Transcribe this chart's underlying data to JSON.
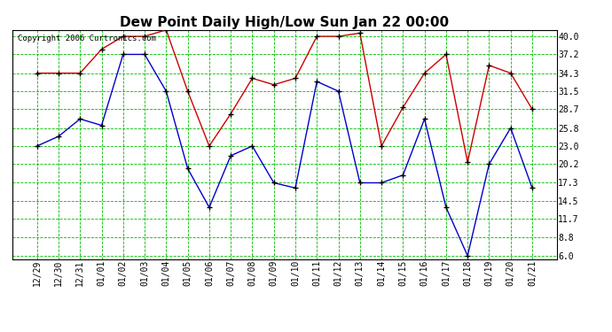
{
  "title": "Dew Point Daily High/Low Sun Jan 22 00:00",
  "copyright": "Copyright 2006 Curtronics.com",
  "x_labels": [
    "12/29",
    "12/30",
    "12/31",
    "01/01",
    "01/02",
    "01/03",
    "01/04",
    "01/05",
    "01/06",
    "01/07",
    "01/08",
    "01/09",
    "01/10",
    "01/11",
    "01/12",
    "01/13",
    "01/14",
    "01/15",
    "01/16",
    "01/17",
    "01/18",
    "01/19",
    "01/20",
    "01/21"
  ],
  "high_values": [
    34.3,
    34.3,
    34.3,
    38.0,
    40.0,
    40.0,
    41.0,
    31.5,
    23.0,
    28.0,
    33.5,
    32.5,
    33.5,
    40.0,
    40.0,
    40.5,
    23.0,
    29.0,
    34.3,
    37.2,
    20.5,
    35.5,
    34.3,
    28.7
  ],
  "low_values": [
    23.0,
    24.5,
    27.2,
    26.2,
    37.2,
    37.2,
    31.5,
    19.5,
    13.5,
    21.5,
    23.0,
    17.3,
    16.5,
    33.0,
    31.5,
    17.3,
    17.3,
    18.5,
    27.2,
    13.5,
    6.0,
    20.2,
    25.8,
    16.5
  ],
  "high_color": "#cc0000",
  "low_color": "#0000cc",
  "bg_color": "#ffffff",
  "plot_bg_color": "#ffffff",
  "grid_color": "#00bb00",
  "border_color": "#000000",
  "y_ticks": [
    6.0,
    8.8,
    11.7,
    14.5,
    17.3,
    20.2,
    23.0,
    25.8,
    28.7,
    31.5,
    34.3,
    37.2,
    40.0
  ],
  "ylim": [
    5.5,
    41.0
  ],
  "title_fontsize": 11,
  "axis_fontsize": 7,
  "copyright_fontsize": 6.5,
  "fig_width": 6.9,
  "fig_height": 3.75,
  "fig_dpi": 100
}
